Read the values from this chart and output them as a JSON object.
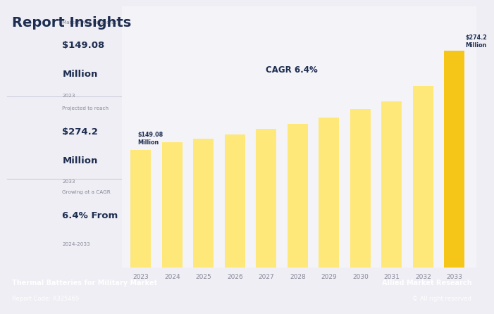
{
  "title": "Report Insights",
  "years": [
    2023,
    2024,
    2025,
    2026,
    2027,
    2028,
    2029,
    2030,
    2031,
    2032,
    2033
  ],
  "values": [
    149.08,
    158.5,
    163.0,
    168.5,
    175.5,
    181.5,
    190.0,
    200.0,
    210.0,
    230.0,
    274.2
  ],
  "bar_color_light": "#FFE87A",
  "bar_color_dark": "#F5C518",
  "bg_color": "#EEEEF4",
  "chart_bg": "#F3F3F8",
  "footer_bg": "#1E2D50",
  "footer_text_left_bold": "Thermal Batteries for Military Market",
  "footer_text_left_normal": "Report Code: A325469",
  "footer_text_right_bold": "Allied Market Research",
  "footer_text_right_normal": "© All right reserved",
  "cagr_text": "CAGR 6.4%",
  "label_first": "$149.08\nMillion",
  "label_last": "$274.2\nMillion",
  "insight1_sub": "Market was valued at",
  "insight1_val": "$149.08",
  "insight1_unit": "Million",
  "insight1_year": "2023",
  "insight2_sub": "Projected to reach",
  "insight2_val": "$274.2",
  "insight2_unit": "Million",
  "insight2_year": "2033",
  "insight3_sub": "Growing at a CAGR",
  "insight3_val": "6.4% From",
  "insight3_year": "2024-2033",
  "divider_color": "#CCCCDD",
  "text_dark": "#1E2D50",
  "text_gray": "#888899"
}
